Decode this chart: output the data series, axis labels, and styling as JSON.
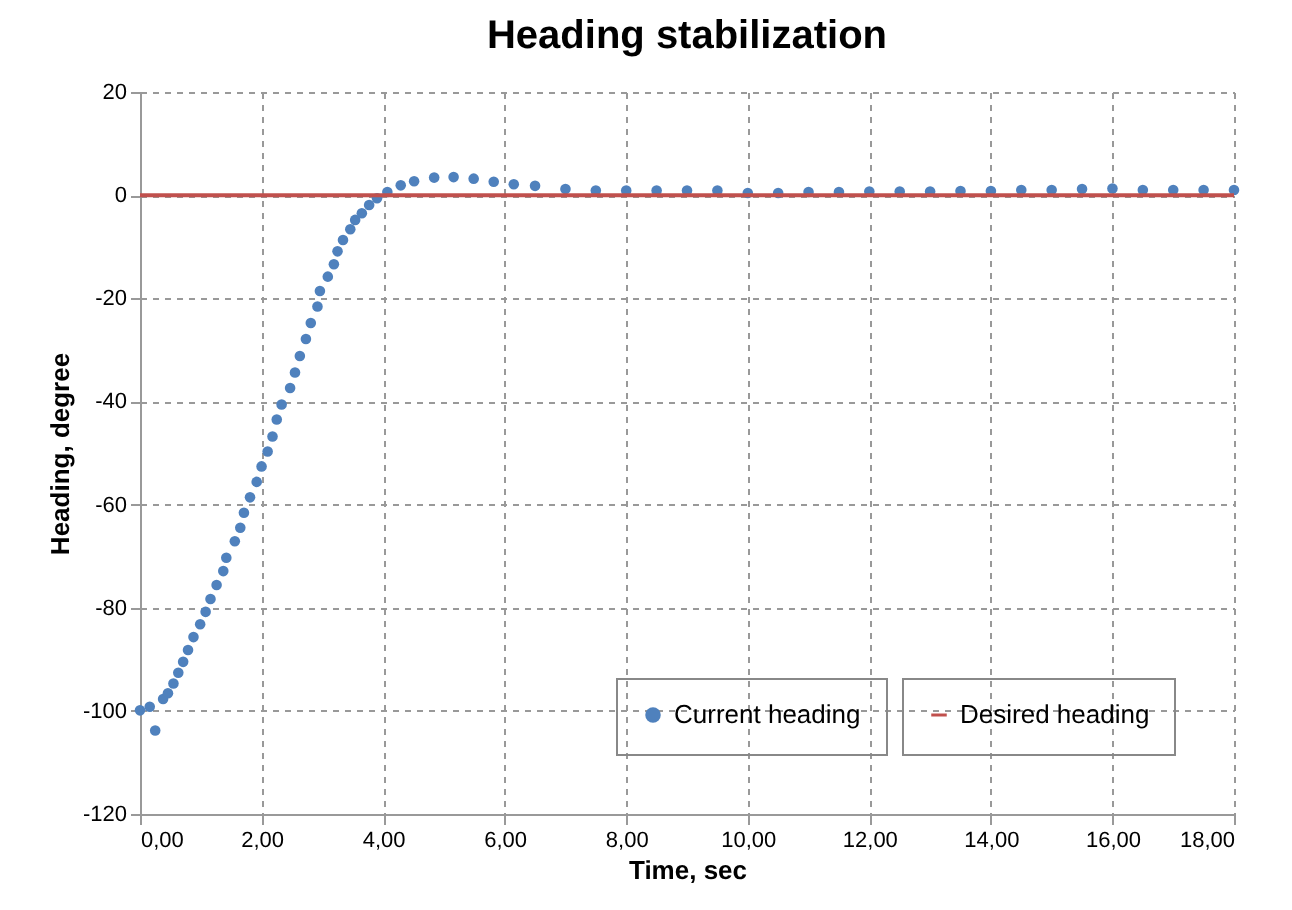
{
  "chart_data": {
    "type": "scatter",
    "title": "Heading stabilization",
    "xlabel": "Time, sec",
    "ylabel": "Heading, degree",
    "xlim": [
      0,
      18
    ],
    "ylim": [
      -120,
      20
    ],
    "xticks": [
      {
        "value": 0,
        "label": "0,00"
      },
      {
        "value": 2,
        "label": "2,00"
      },
      {
        "value": 4,
        "label": "4,00"
      },
      {
        "value": 6,
        "label": "6,00"
      },
      {
        "value": 8,
        "label": "8,00"
      },
      {
        "value": 10,
        "label": "10,00"
      },
      {
        "value": 12,
        "label": "12,00"
      },
      {
        "value": 14,
        "label": "14,00"
      },
      {
        "value": 16,
        "label": "16,00"
      },
      {
        "value": 18,
        "label": "18,00"
      }
    ],
    "yticks": [
      -120,
      -100,
      -80,
      -60,
      -40,
      -20,
      0,
      20
    ],
    "grid": true,
    "legend": "bottom right",
    "series": [
      {
        "name": "Current heading",
        "marker": "circle",
        "color": "#4f81bd",
        "x": [
          0,
          0.16,
          0.25,
          0.38,
          0.46,
          0.55,
          0.63,
          0.71,
          0.79,
          0.88,
          0.99,
          1.08,
          1.16,
          1.26,
          1.37,
          1.42,
          1.56,
          1.65,
          1.71,
          1.81,
          1.92,
          2.0,
          2.1,
          2.18,
          2.25,
          2.33,
          2.47,
          2.55,
          2.63,
          2.73,
          2.81,
          2.92,
          2.96,
          3.09,
          3.19,
          3.25,
          3.34,
          3.46,
          3.54,
          3.65,
          3.77,
          3.9,
          4.07,
          4.29,
          4.51,
          4.84,
          5.16,
          5.49,
          5.82,
          6.15,
          6.5,
          7.0,
          7.5,
          8.0,
          8.5,
          9.0,
          9.5,
          10.0,
          10.5,
          11.0,
          11.5,
          12.0,
          12.5,
          13.0,
          13.5,
          14.0,
          14.5,
          15.0,
          15.5,
          16.0,
          16.5,
          17.0,
          17.5,
          18.0
        ],
        "values": [
          -99.9,
          -99.2,
          -103.8,
          -97.7,
          -96.6,
          -94.7,
          -92.6,
          -90.5,
          -88.2,
          -85.7,
          -83.2,
          -80.8,
          -78.3,
          -75.6,
          -72.9,
          -70.3,
          -67.1,
          -64.5,
          -61.6,
          -58.6,
          -55.6,
          -52.6,
          -49.7,
          -46.8,
          -43.5,
          -40.6,
          -37.4,
          -34.4,
          -31.2,
          -27.9,
          -24.8,
          -21.6,
          -18.6,
          -15.8,
          -13.4,
          -10.9,
          -8.7,
          -6.6,
          -4.8,
          -3.5,
          -1.9,
          -0.6,
          0.6,
          1.9,
          2.7,
          3.4,
          3.5,
          3.2,
          2.6,
          2.1,
          1.8,
          1.2,
          0.9,
          0.9,
          0.9,
          0.9,
          0.9,
          0.4,
          0.4,
          0.6,
          0.6,
          0.7,
          0.7,
          0.7,
          0.8,
          0.8,
          1.0,
          1.0,
          1.2,
          1.3,
          1.0,
          1.0,
          1.0,
          1.0
        ]
      },
      {
        "name": "Desired heading",
        "type": "line",
        "marker": "none",
        "color": "#c0504d",
        "x": [
          0,
          18
        ],
        "values": [
          0,
          0
        ]
      }
    ]
  }
}
